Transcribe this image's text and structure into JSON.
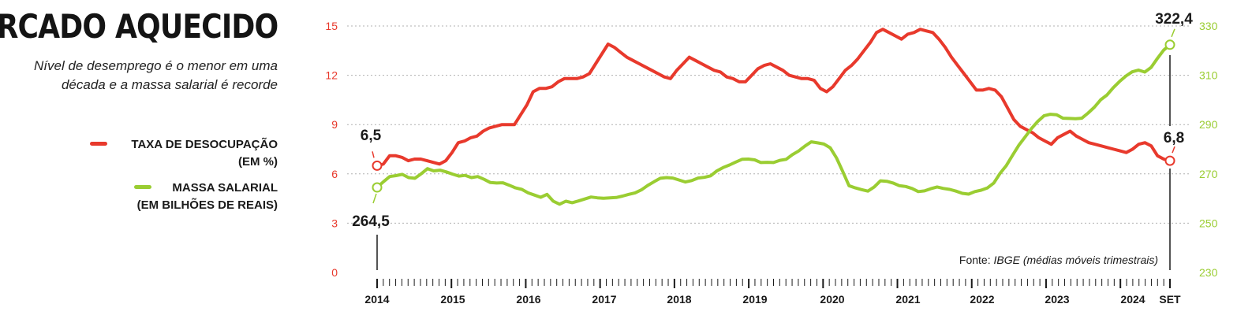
{
  "header": {
    "title": "MERCADO AQUECIDO",
    "subtitle_line1": "Nível de desemprego é o menor em uma",
    "subtitle_line2": "década e a massa salarial é recorde"
  },
  "legend": {
    "unemployment_line1": "TAXA DE DESOCUPAÇÃO",
    "unemployment_line2": "(EM %)",
    "payroll_line1": "MASSA SALARIAL",
    "payroll_line2": "(EM BILHÕES DE REAIS)"
  },
  "source": {
    "prefix": "Fonte: ",
    "text": "IBGE (médias móveis trimestrais)"
  },
  "colors": {
    "unemployment": "#e8392c",
    "payroll": "#9acd32",
    "text": "#1a1a1a",
    "grid": "#b0b0b0"
  },
  "chart_data": {
    "type": "line",
    "x_labels": [
      "2014",
      "2015",
      "2016",
      "2017",
      "2018",
      "2019",
      "2020",
      "2021",
      "2022",
      "2023",
      "2024",
      "SET"
    ],
    "y_left": {
      "ticks": [
        "0",
        "3",
        "6",
        "9",
        "12",
        "15"
      ],
      "range": [
        0,
        15
      ]
    },
    "y_right": {
      "ticks": [
        "230",
        "250",
        "270",
        "290",
        "310",
        "330"
      ],
      "range": [
        230,
        330
      ]
    },
    "series": [
      {
        "axis": "left",
        "start_label": "6,5",
        "end_label": "6,8",
        "values": [
          6.5,
          6.6,
          7.1,
          7.1,
          7.0,
          6.8,
          6.9,
          6.9,
          6.8,
          6.7,
          6.6,
          6.8,
          7.3,
          7.9,
          8.0,
          8.2,
          8.3,
          8.6,
          8.8,
          8.9,
          9.0,
          9.0,
          9.0,
          9.6,
          10.2,
          11.0,
          11.2,
          11.2,
          11.3,
          11.6,
          11.8,
          11.8,
          11.8,
          11.9,
          12.1,
          12.7,
          13.3,
          13.9,
          13.7,
          13.4,
          13.1,
          12.9,
          12.7,
          12.5,
          12.3,
          12.1,
          11.9,
          11.8,
          12.3,
          12.7,
          13.1,
          12.9,
          12.7,
          12.5,
          12.3,
          12.2,
          11.9,
          11.8,
          11.6,
          11.6,
          12.0,
          12.4,
          12.6,
          12.7,
          12.5,
          12.3,
          12.0,
          11.9,
          11.8,
          11.8,
          11.7,
          11.2,
          11.0,
          11.3,
          11.8,
          12.3,
          12.6,
          13.0,
          13.5,
          14.0,
          14.6,
          14.8,
          14.6,
          14.4,
          14.2,
          14.5,
          14.6,
          14.8,
          14.7,
          14.6,
          14.2,
          13.7,
          13.1,
          12.6,
          12.1,
          11.6,
          11.1,
          11.1,
          11.2,
          11.1,
          10.7,
          10.0,
          9.3,
          8.9,
          8.7,
          8.5,
          8.2,
          8.0,
          7.8,
          8.2,
          8.4,
          8.6,
          8.3,
          8.1,
          7.9,
          7.8,
          7.7,
          7.6,
          7.5,
          7.4,
          7.3,
          7.5,
          7.8,
          7.9,
          7.7,
          7.1,
          6.9,
          6.8
        ]
      },
      {
        "axis": "right",
        "start_label": "264,5",
        "end_label": "322,4",
        "values": [
          264.5,
          266.8,
          268.9,
          269.3,
          269.8,
          268.5,
          268.2,
          270.0,
          272.1,
          271.2,
          271.5,
          270.8,
          269.9,
          269.1,
          269.4,
          268.5,
          268.9,
          267.8,
          266.5,
          266.3,
          266.4,
          265.4,
          264.3,
          263.7,
          262.3,
          261.4,
          260.5,
          261.7,
          258.9,
          257.7,
          258.9,
          258.3,
          259.0,
          259.8,
          260.6,
          260.3,
          260.1,
          260.3,
          260.4,
          261.0,
          261.7,
          262.3,
          263.5,
          265.3,
          266.8,
          268.2,
          268.5,
          268.3,
          267.5,
          266.7,
          267.3,
          268.3,
          268.6,
          269.2,
          271.2,
          272.6,
          273.6,
          274.8,
          275.9,
          276.0,
          275.7,
          274.6,
          274.7,
          274.6,
          275.5,
          275.9,
          277.8,
          279.3,
          281.3,
          283.0,
          282.6,
          282.1,
          280.6,
          276.5,
          271.0,
          265.2,
          264.3,
          263.6,
          263.0,
          264.7,
          267.2,
          267.0,
          266.3,
          265.2,
          264.9,
          264.1,
          262.8,
          263.1,
          264.0,
          264.7,
          264.1,
          263.7,
          263.0,
          262.1,
          261.8,
          262.8,
          263.4,
          264.3,
          266.3,
          270.2,
          273.4,
          277.6,
          281.7,
          285.0,
          288.4,
          291.3,
          293.6,
          294.2,
          294.0,
          292.6,
          292.5,
          292.4,
          292.6,
          294.7,
          297.1,
          300.1,
          302.0,
          305.0,
          307.5,
          309.7,
          311.4,
          312.1,
          311.3,
          313.2,
          316.8,
          320.2,
          322.4
        ]
      }
    ]
  }
}
